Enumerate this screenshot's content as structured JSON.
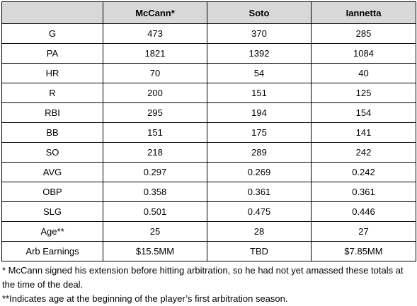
{
  "table": {
    "headers": [
      "",
      "McCann*",
      "Soto",
      "Iannetta"
    ],
    "rows": [
      {
        "label": "G",
        "values": [
          "473",
          "370",
          "285"
        ]
      },
      {
        "label": "PA",
        "values": [
          "1821",
          "1392",
          "1084"
        ]
      },
      {
        "label": "HR",
        "values": [
          "70",
          "54",
          "40"
        ]
      },
      {
        "label": "R",
        "values": [
          "200",
          "151",
          "125"
        ]
      },
      {
        "label": "RBI",
        "values": [
          "295",
          "194",
          "154"
        ]
      },
      {
        "label": "BB",
        "values": [
          "151",
          "175",
          "141"
        ]
      },
      {
        "label": "SO",
        "values": [
          "218",
          "289",
          "242"
        ]
      },
      {
        "label": "AVG",
        "values": [
          "0.297",
          "0.269",
          "0.242"
        ]
      },
      {
        "label": "OBP",
        "values": [
          "0.358",
          "0.361",
          "0.361"
        ]
      },
      {
        "label": "SLG",
        "values": [
          "0.501",
          "0.475",
          "0.446"
        ]
      },
      {
        "label": "Age**",
        "values": [
          "25",
          "28",
          "27"
        ]
      },
      {
        "label": "Arb Earnings",
        "values": [
          "$15.5MM",
          "TBD",
          "$7.85MM"
        ]
      }
    ]
  },
  "footnotes": [
    "* McCann signed his extension before hitting arbitration, so he had not yet amassed these totals at the time of the deal.",
    "**Indicates age at the beginning of the player’s first arbitration season."
  ],
  "colors": {
    "header_background": "#d8d8d8",
    "border": "#000000"
  }
}
